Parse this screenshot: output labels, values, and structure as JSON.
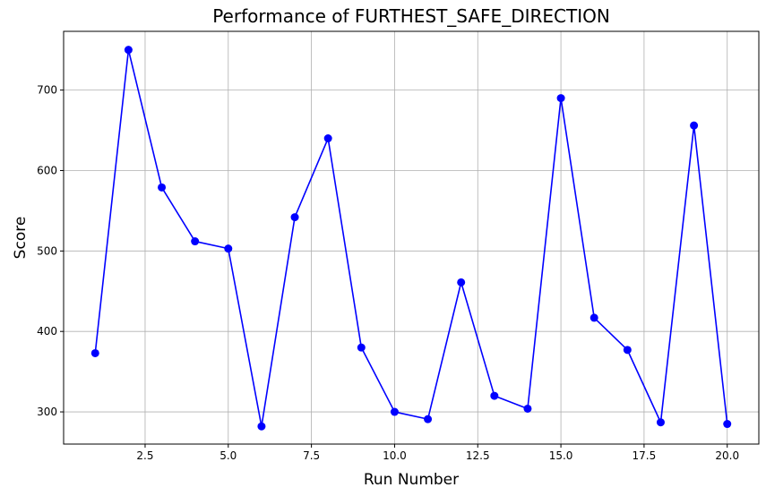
{
  "chart_data": {
    "type": "line",
    "title": "Performance of FURTHEST_SAFE_DIRECTION",
    "xlabel": "Run Number",
    "ylabel": "Score",
    "xlim": [
      0.05,
      20.95
    ],
    "ylim": [
      260,
      773
    ],
    "xticks": [
      2.5,
      5.0,
      7.5,
      10.0,
      12.5,
      15.0,
      17.5,
      20.0
    ],
    "xtick_labels": [
      "2.5",
      "5.0",
      "7.5",
      "10.0",
      "12.5",
      "15.0",
      "17.5",
      "20.0"
    ],
    "yticks": [
      300,
      400,
      500,
      600,
      700
    ],
    "ytick_labels": [
      "300",
      "400",
      "500",
      "600",
      "700"
    ],
    "grid": true,
    "series": [
      {
        "color": "#0000ff",
        "marker": "circle",
        "x": [
          1,
          2,
          3,
          4,
          5,
          6,
          7,
          8,
          9,
          10,
          11,
          12,
          13,
          14,
          15,
          16,
          17,
          18,
          19,
          20
        ],
        "y": [
          373,
          750,
          579,
          512,
          503,
          282,
          542,
          640,
          380,
          300,
          291,
          461,
          320,
          304,
          690,
          417,
          377,
          287,
          656,
          285
        ]
      }
    ]
  }
}
